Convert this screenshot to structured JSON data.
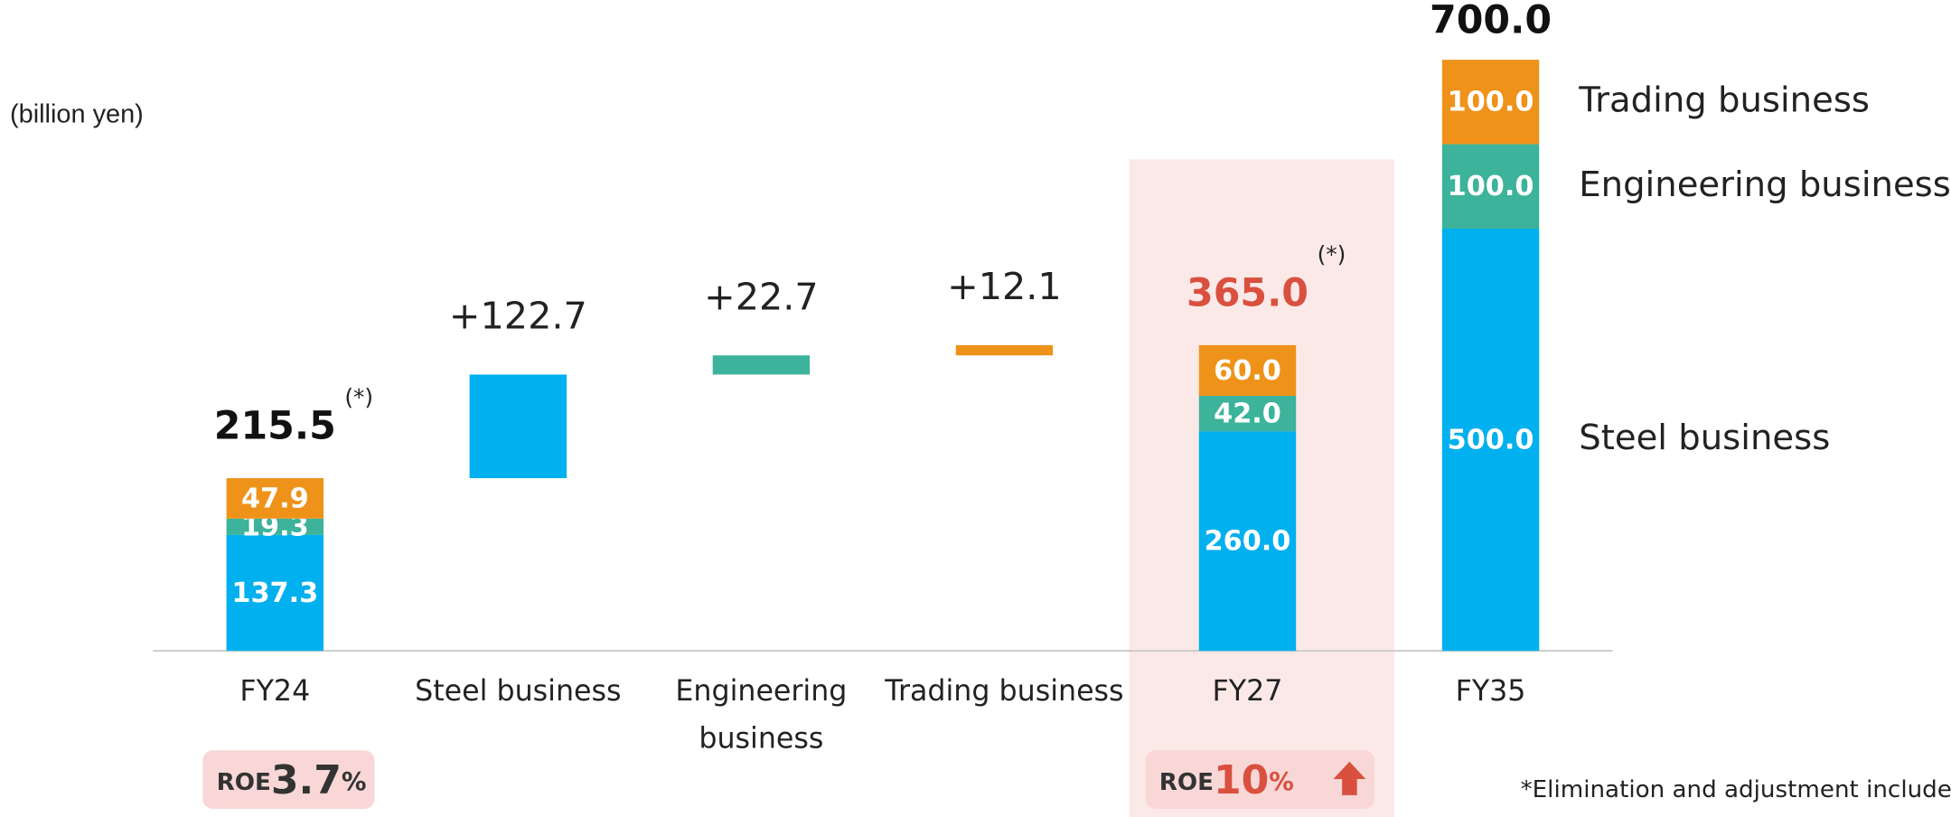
{
  "chart_data": {
    "type": "waterfall",
    "unit_label": "(billion yen)",
    "categories": [
      "FY24",
      "Steel business",
      "Engineering business",
      "Trading business",
      "FY27",
      "FY35"
    ],
    "series": [
      {
        "name": "Steel business",
        "color": "#00b0ef",
        "values": [
          137.3,
          122.7,
          null,
          null,
          260.0,
          500.0
        ],
        "value_labels": [
          "137.3",
          "+122.7",
          null,
          null,
          "260.0",
          "500.0"
        ]
      },
      {
        "name": "Engineering business",
        "color": "#3cb39a",
        "values": [
          19.3,
          null,
          22.7,
          null,
          42.0,
          100.0
        ],
        "value_labels": [
          "19.3",
          null,
          "+22.7",
          null,
          "42.0",
          "100.0"
        ]
      },
      {
        "name": "Trading business",
        "color": "#ef921a",
        "values": [
          47.9,
          null,
          null,
          12.1,
          60.0,
          100.0
        ],
        "value_labels": [
          "47.9",
          null,
          null,
          "+12.1",
          "60.0",
          "100.0"
        ]
      }
    ],
    "totals": [
      215.5,
      null,
      null,
      null,
      365.0,
      700.0
    ],
    "total_labels": [
      "215.5",
      null,
      null,
      null,
      "365.0",
      "700.0"
    ],
    "total_notes": [
      "(*)",
      null,
      null,
      null,
      "(*)",
      null
    ],
    "highlight": "FY27",
    "legend": "right",
    "ylim": [
      0,
      700
    ],
    "annotations": [
      {
        "category": "FY24",
        "prefix": "ROE",
        "value": "3.7",
        "unit": "%"
      },
      {
        "category": "FY27",
        "prefix": "ROE",
        "value": "10",
        "unit": "%"
      }
    ],
    "footnote": "*Elimination and adjustment included"
  }
}
